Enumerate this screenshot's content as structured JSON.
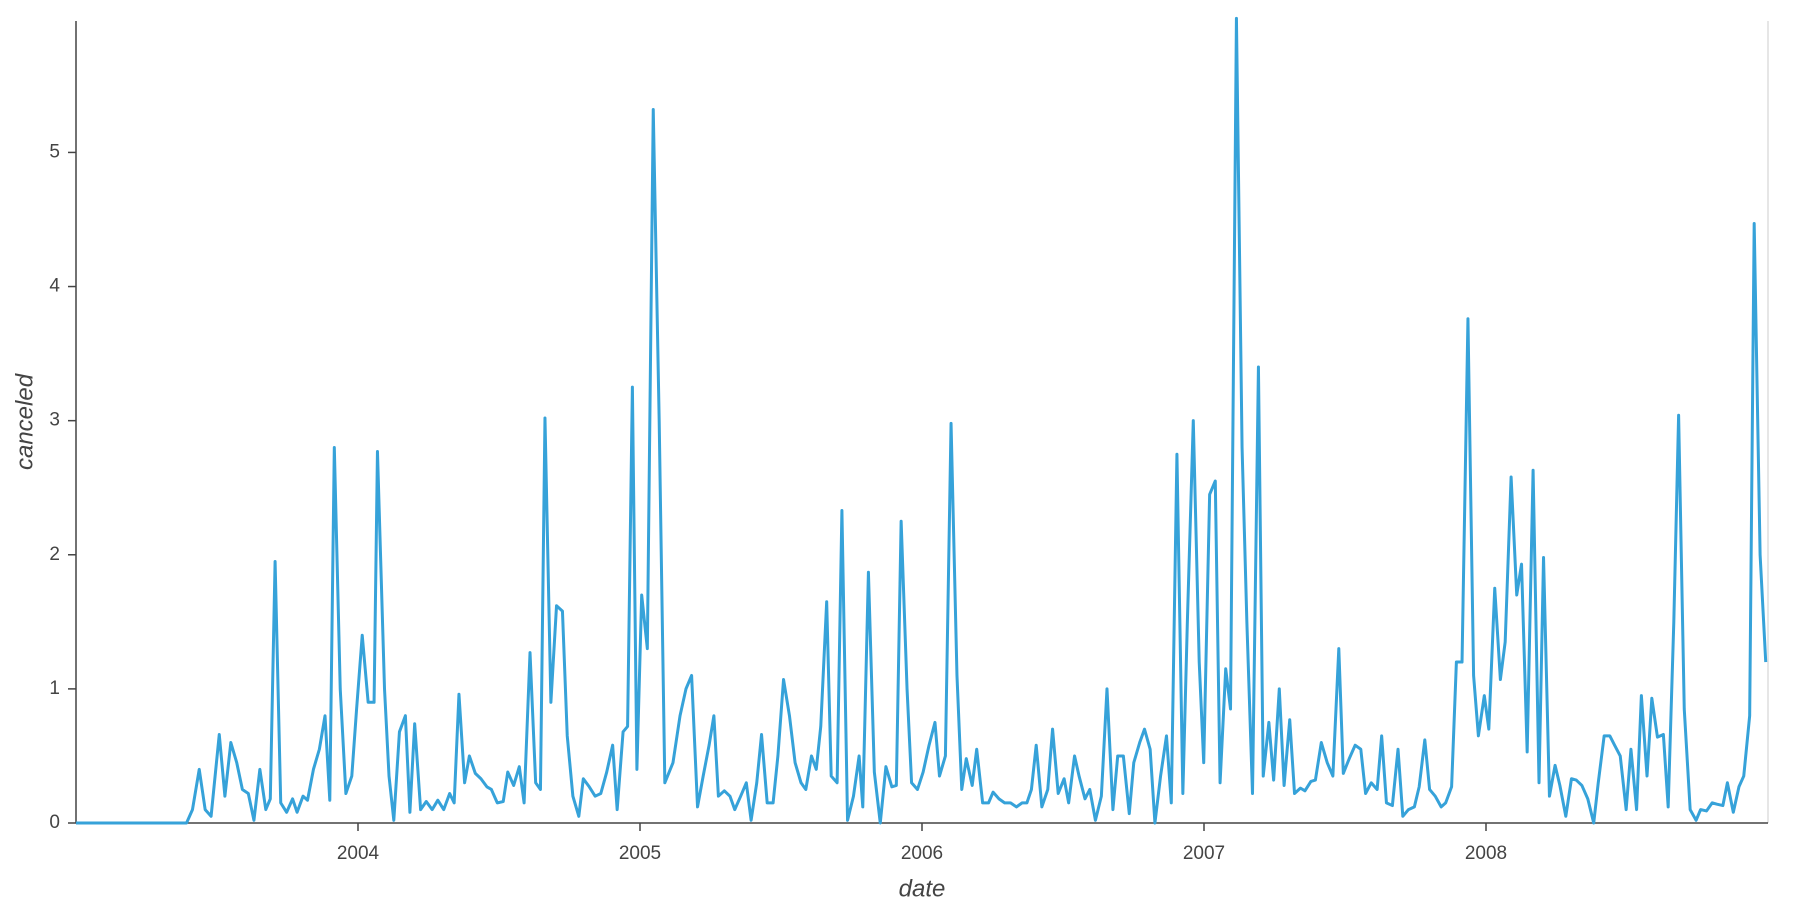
{
  "chart_data": {
    "type": "line",
    "x_label": "date",
    "y_label": "canceled",
    "xlim": [
      2003.0,
      2009.0
    ],
    "xticks": [
      2004,
      2005,
      2006,
      2007,
      2008
    ],
    "ylim": [
      0,
      5.98
    ],
    "yticks": [
      0,
      1,
      2,
      3,
      4,
      5
    ],
    "series": [
      {
        "color": "#36a2d9",
        "x": [
          2003.0,
          2003.392,
          2003.413,
          2003.437,
          2003.458,
          2003.479,
          2003.508,
          2003.528,
          2003.549,
          2003.57,
          2003.59,
          2003.611,
          2003.631,
          2003.652,
          2003.673,
          2003.689,
          2003.706,
          2003.726,
          2003.747,
          2003.768,
          2003.784,
          2003.805,
          2003.821,
          2003.842,
          2003.863,
          2003.883,
          2003.9,
          2003.916,
          2003.937,
          2003.957,
          2003.978,
          2003.995,
          2004.015,
          2004.036,
          2004.057,
          2004.069,
          2004.094,
          2004.11,
          2004.127,
          2004.147,
          2004.168,
          2004.184,
          2004.201,
          2004.222,
          2004.242,
          2004.263,
          2004.283,
          2004.304,
          2004.325,
          2004.341,
          2004.358,
          2004.378,
          2004.395,
          2004.416,
          2004.436,
          2004.457,
          2004.473,
          2004.494,
          2004.515,
          2004.531,
          2004.552,
          2004.572,
          2004.589,
          2004.61,
          2004.63,
          2004.647,
          2004.663,
          2004.684,
          2004.704,
          2004.725,
          2004.742,
          2004.762,
          2004.783,
          2004.799,
          2004.82,
          2004.841,
          2004.861,
          2004.882,
          2004.903,
          2004.919,
          2004.94,
          2004.956,
          2004.973,
          2004.989,
          2005.006,
          2005.026,
          2005.047,
          2005.068,
          2005.088,
          2005.117,
          2005.142,
          2005.163,
          2005.183,
          2005.204,
          2005.224,
          2005.245,
          2005.262,
          2005.278,
          2005.299,
          2005.319,
          2005.336,
          2005.357,
          2005.377,
          2005.394,
          2005.414,
          2005.431,
          2005.451,
          2005.472,
          2005.489,
          2005.509,
          2005.53,
          2005.55,
          2005.571,
          2005.588,
          2005.608,
          2005.625,
          2005.641,
          2005.662,
          2005.678,
          2005.699,
          2005.716,
          2005.736,
          2005.757,
          2005.777,
          2005.79,
          2005.81,
          2005.831,
          2005.852,
          2005.872,
          2005.893,
          2005.909,
          2005.926,
          2005.947,
          2005.963,
          2005.984,
          2006.004,
          2006.025,
          2006.046,
          2006.062,
          2006.083,
          2006.103,
          2006.124,
          2006.141,
          2006.157,
          2006.178,
          2006.194,
          2006.215,
          2006.236,
          2006.252,
          2006.273,
          2006.293,
          2006.314,
          2006.335,
          2006.355,
          2006.372,
          2006.388,
          2006.405,
          2006.425,
          2006.446,
          2006.463,
          2006.483,
          2006.504,
          2006.52,
          2006.541,
          2006.557,
          2006.578,
          2006.595,
          2006.615,
          2006.636,
          2006.656,
          2006.677,
          2006.694,
          2006.714,
          2006.735,
          2006.751,
          2006.772,
          2006.789,
          2006.809,
          2006.826,
          2006.846,
          2006.867,
          2006.884,
          2006.904,
          2006.925,
          2006.941,
          2006.962,
          2006.983,
          2006.999,
          2007.02,
          2007.04,
          2007.057,
          2007.077,
          2007.094,
          2007.115,
          2007.135,
          2007.152,
          2007.172,
          2007.193,
          2007.21,
          2007.23,
          2007.247,
          2007.267,
          2007.284,
          2007.304,
          2007.321,
          2007.342,
          2007.358,
          2007.379,
          2007.395,
          2007.416,
          2007.437,
          2007.457,
          2007.478,
          2007.494,
          2007.515,
          2007.536,
          2007.556,
          2007.573,
          2007.593,
          2007.614,
          2007.63,
          2007.647,
          2007.668,
          2007.688,
          2007.705,
          2007.725,
          2007.746,
          2007.763,
          2007.783,
          2007.8,
          2007.82,
          2007.841,
          2007.857,
          2007.878,
          2007.895,
          2007.915,
          2007.936,
          2007.956,
          2007.973,
          2007.994,
          2008.01,
          2008.031,
          2008.051,
          2008.068,
          2008.089,
          2008.109,
          2008.126,
          2008.146,
          2008.167,
          2008.188,
          2008.204,
          2008.225,
          2008.245,
          2008.262,
          2008.283,
          2008.303,
          2008.32,
          2008.34,
          2008.361,
          2008.382,
          2008.398,
          2008.419,
          2008.439,
          2008.456,
          2008.476,
          2008.497,
          2008.514,
          2008.534,
          2008.551,
          2008.571,
          2008.588,
          2008.608,
          2008.629,
          2008.646,
          2008.666,
          2008.683,
          2008.703,
          2008.724,
          2008.745,
          2008.761,
          2008.782,
          2008.802,
          2008.819,
          2008.84,
          2008.856,
          2008.877,
          2008.897,
          2008.914,
          2008.935,
          2008.951,
          2008.972,
          2008.992
        ],
        "values": [
          0,
          0,
          0.1,
          0.4,
          0.1,
          0.05,
          0.66,
          0.2,
          0.6,
          0.45,
          0.25,
          0.22,
          0.02,
          0.4,
          0.1,
          0.18,
          1.95,
          0.15,
          0.08,
          0.18,
          0.08,
          0.2,
          0.17,
          0.4,
          0.55,
          0.8,
          0.17,
          2.8,
          1.0,
          0.22,
          0.35,
          0.85,
          1.4,
          0.9,
          0.9,
          2.77,
          1.0,
          0.35,
          0.02,
          0.68,
          0.8,
          0.08,
          0.74,
          0.1,
          0.16,
          0.1,
          0.17,
          0.1,
          0.22,
          0.15,
          0.96,
          0.3,
          0.5,
          0.37,
          0.33,
          0.27,
          0.25,
          0.15,
          0.16,
          0.38,
          0.28,
          0.42,
          0.15,
          1.27,
          0.3,
          0.25,
          3.02,
          0.9,
          1.62,
          1.58,
          0.65,
          0.2,
          0.05,
          0.33,
          0.27,
          0.2,
          0.22,
          0.38,
          0.58,
          0.1,
          0.68,
          0.72,
          3.25,
          0.4,
          1.7,
          1.3,
          5.32,
          3.0,
          0.3,
          0.45,
          0.8,
          1.0,
          1.1,
          0.12,
          0.35,
          0.58,
          0.8,
          0.2,
          0.24,
          0.2,
          0.1,
          0.2,
          0.3,
          0.02,
          0.3,
          0.66,
          0.15,
          0.15,
          0.5,
          1.07,
          0.8,
          0.45,
          0.3,
          0.25,
          0.5,
          0.4,
          0.72,
          1.65,
          0.35,
          0.3,
          2.33,
          0.02,
          0.2,
          0.5,
          0.12,
          1.87,
          0.38,
          0.0,
          0.42,
          0.27,
          0.28,
          2.25,
          1.0,
          0.3,
          0.25,
          0.38,
          0.58,
          0.75,
          0.35,
          0.5,
          2.98,
          1.1,
          0.25,
          0.48,
          0.28,
          0.55,
          0.15,
          0.15,
          0.23,
          0.18,
          0.15,
          0.15,
          0.12,
          0.15,
          0.15,
          0.25,
          0.58,
          0.12,
          0.25,
          0.7,
          0.22,
          0.33,
          0.15,
          0.5,
          0.35,
          0.18,
          0.25,
          0.02,
          0.2,
          1.0,
          0.1,
          0.5,
          0.5,
          0.07,
          0.45,
          0.6,
          0.7,
          0.55,
          0.0,
          0.35,
          0.65,
          0.15,
          2.75,
          0.22,
          1.5,
          3.0,
          1.2,
          0.45,
          2.45,
          2.55,
          0.3,
          1.15,
          0.85,
          6.0,
          2.8,
          1.5,
          0.22,
          3.4,
          0.35,
          0.75,
          0.32,
          1.0,
          0.28,
          0.77,
          0.22,
          0.26,
          0.24,
          0.31,
          0.32,
          0.6,
          0.45,
          0.35,
          1.3,
          0.37,
          0.48,
          0.58,
          0.55,
          0.22,
          0.3,
          0.25,
          0.65,
          0.15,
          0.13,
          0.55,
          0.05,
          0.1,
          0.12,
          0.27,
          0.62,
          0.25,
          0.2,
          0.12,
          0.15,
          0.27,
          1.2,
          1.2,
          3.76,
          1.1,
          0.65,
          0.95,
          0.7,
          1.75,
          1.07,
          1.35,
          2.58,
          1.7,
          1.93,
          0.53,
          2.63,
          0.3,
          1.98,
          0.2,
          0.43,
          0.28,
          0.05,
          0.33,
          0.32,
          0.28,
          0.18,
          0.0,
          0.3,
          0.65,
          0.65,
          0.58,
          0.5,
          0.1,
          0.55,
          0.1,
          0.95,
          0.35,
          0.93,
          0.64,
          0.66,
          0.12,
          1.5,
          3.04,
          0.85,
          0.1,
          0.02,
          0.1,
          0.09,
          0.15,
          0.14,
          0.13,
          0.3,
          0.08,
          0.27,
          0.35,
          0.8,
          4.47,
          2.0,
          1.2
        ]
      }
    ]
  }
}
